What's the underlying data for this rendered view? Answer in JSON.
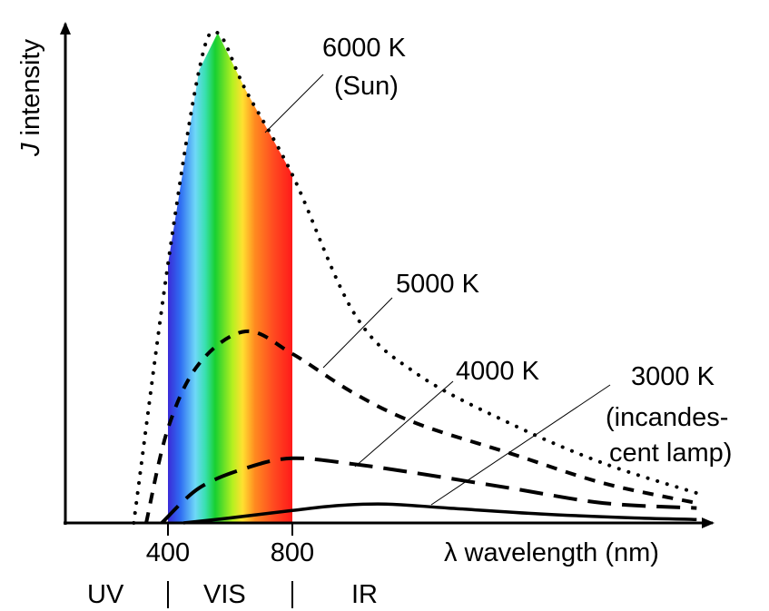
{
  "chart_data": {
    "type": "line",
    "ylabel_italic": "J",
    "ylabel_rest": " intensity",
    "xlabel": "λ wavelength (nm)",
    "xticks": [
      400,
      800
    ],
    "xlim": [
      220,
      2300
    ],
    "ylim": [
      0,
      1.0
    ],
    "regions": [
      "UV",
      "VIS",
      "IR"
    ],
    "visible_band": [
      400,
      800
    ],
    "grid": false,
    "series": [
      {
        "name": "6000 K",
        "sub": "(Sun)",
        "style": "dotted",
        "x": [
          290,
          400,
          500,
          560,
          650,
          800,
          1000,
          1200,
          1500,
          1800,
          2100
        ],
        "y": [
          0.0,
          0.52,
          0.91,
          0.985,
          0.87,
          0.7,
          0.42,
          0.3,
          0.2,
          0.12,
          0.06
        ]
      },
      {
        "name": "5000 K",
        "style": "short-dash",
        "x": [
          330,
          400,
          500,
          650,
          800,
          1000,
          1200,
          1500,
          1800,
          2100
        ],
        "y": [
          0.0,
          0.19,
          0.32,
          0.385,
          0.34,
          0.26,
          0.2,
          0.14,
          0.08,
          0.04
        ]
      },
      {
        "name": "4000 K",
        "style": "long-dash",
        "x": [
          380,
          500,
          650,
          800,
          1000,
          1200,
          1500,
          1800,
          2100
        ],
        "y": [
          0.0,
          0.07,
          0.11,
          0.13,
          0.118,
          0.1,
          0.07,
          0.04,
          0.03
        ]
      },
      {
        "name": "3000 K",
        "sub": "(incandes-",
        "sub2": "cent lamp)",
        "style": "solid",
        "x": [
          450,
          600,
          800,
          950,
          1100,
          1300,
          1600,
          1900,
          2100
        ],
        "y": [
          0.0,
          0.01,
          0.025,
          0.035,
          0.038,
          0.03,
          0.018,
          0.01,
          0.007
        ]
      }
    ]
  }
}
